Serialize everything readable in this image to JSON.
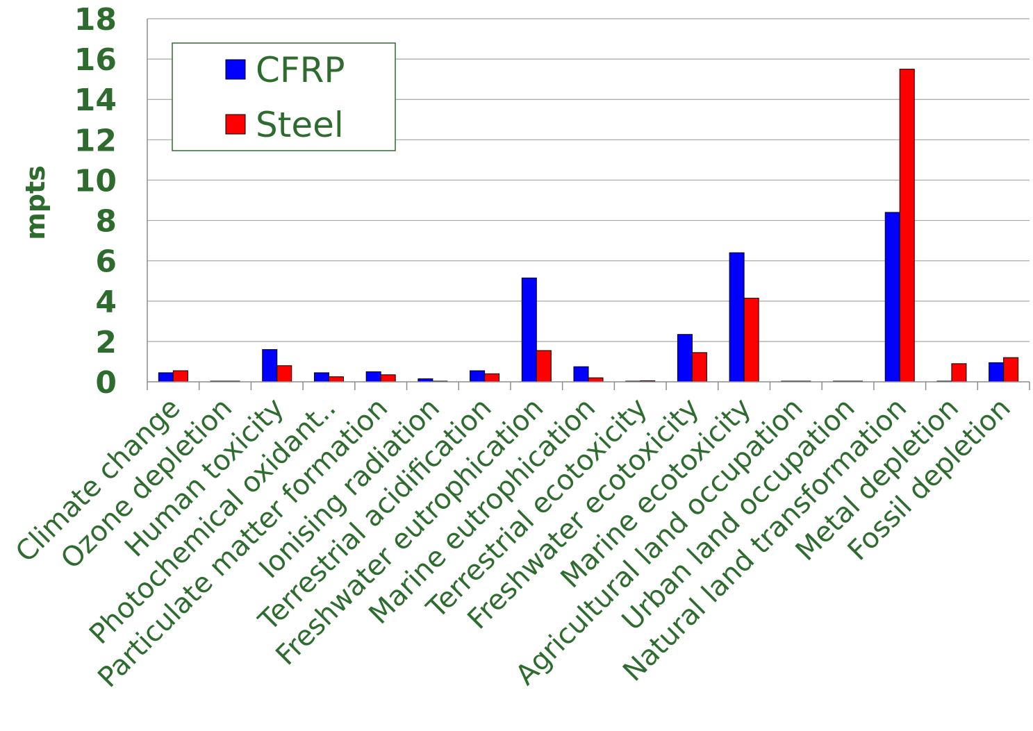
{
  "chart_data": {
    "type": "bar",
    "title": "",
    "xlabel": "",
    "ylabel": "mpts",
    "ylim": [
      0,
      18
    ],
    "yticks": [
      "0",
      "2",
      "4",
      "6",
      "8",
      "10",
      "12",
      "14",
      "16",
      "18"
    ],
    "grid": true,
    "legend_position": "top-left",
    "categories": [
      "Climate change",
      "Ozone depletion",
      "Human toxicity",
      "Photochemical oxidant..",
      "Particulate matter formation",
      "Ionising radiation",
      "Terrestrial acidification",
      "Freshwater eutrophication",
      "Marine eutrophication",
      "Terrestrial ecotoxicity",
      "Freshwater ecotoxicity",
      "Marine ecotoxicity",
      "Agricultural land occupation",
      "Urban land occupation",
      "Natural land transformation",
      "Metal depletion",
      "Fossil depletion"
    ],
    "series": [
      {
        "name": "CFRP",
        "color": "#0000ff",
        "values": [
          0.45,
          0.02,
          1.6,
          0.45,
          0.5,
          0.15,
          0.55,
          5.15,
          0.75,
          0.02,
          2.35,
          6.4,
          0.02,
          0.02,
          8.4,
          0.02,
          0.95
        ]
      },
      {
        "name": "Steel",
        "color": "#ff0000",
        "values": [
          0.55,
          0.02,
          0.8,
          0.25,
          0.35,
          0.02,
          0.4,
          1.55,
          0.2,
          0.05,
          1.45,
          4.15,
          0.02,
          0.02,
          15.5,
          0.9,
          1.2
        ]
      }
    ]
  },
  "colors": {
    "text": "#2e6b2e",
    "grid": "#a6a6a6",
    "axis": "#8c8c8c",
    "legend_border": "#2e6b2e"
  }
}
